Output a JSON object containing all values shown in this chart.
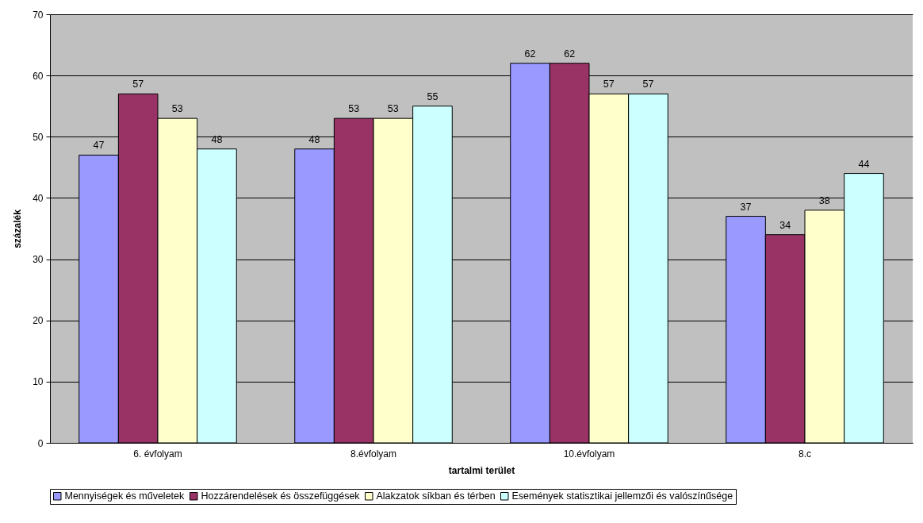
{
  "chart_data": {
    "type": "bar",
    "xlabel": "tartalmi terület",
    "ylabel": "százalék",
    "categories": [
      "6. évfolyam",
      "8.évfolyam",
      "10.évfolyam",
      "8.c"
    ],
    "series": [
      {
        "name": "Mennyiségek és műveletek",
        "color": "#9999ff",
        "values": [
          47,
          48,
          62,
          37
        ]
      },
      {
        "name": "Hozzárendelések és összefüggések",
        "color": "#993366",
        "values": [
          57,
          53,
          62,
          34
        ]
      },
      {
        "name": "Alakzatok síkban és térben",
        "color": "#ffffcc",
        "values": [
          53,
          53,
          57,
          38
        ]
      },
      {
        "name": "Események statisztikai jellemzői és valószínűsége",
        "color": "#ccffff",
        "values": [
          48,
          55,
          57,
          44
        ]
      }
    ],
    "ylim": [
      0,
      70
    ],
    "yticks": [
      0,
      10,
      20,
      30,
      40,
      50,
      60,
      70
    ],
    "grid": "y",
    "legend": "bottom",
    "data_labels": true
  }
}
